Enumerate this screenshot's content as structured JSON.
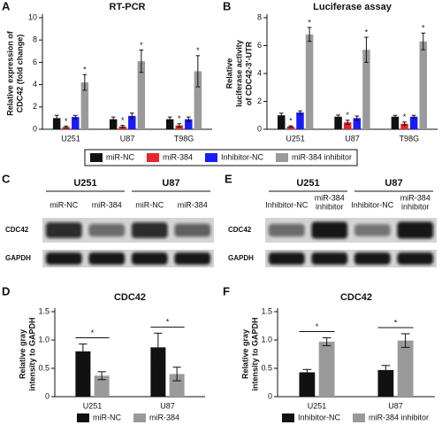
{
  "chart_data": [
    {
      "type": "bar",
      "panel": "A",
      "title": "RT-PCR",
      "ylabel": [
        "Relative expression of",
        "CDC42 (fold change)"
      ],
      "categories": [
        "U251",
        "U87",
        "T98G"
      ],
      "ylim": [
        0,
        10
      ],
      "yticks": [
        0,
        2,
        4,
        6,
        8,
        10
      ],
      "legend": "bottom",
      "series": [
        {
          "name": "miR-NC",
          "color": "#111111",
          "values": [
            1.0,
            0.9,
            0.9
          ],
          "errors": [
            0.25,
            0.2,
            0.2
          ]
        },
        {
          "name": "miR-384",
          "color": "#e8262a",
          "values": [
            0.2,
            0.25,
            0.35
          ],
          "errors": [
            0.08,
            0.1,
            0.15
          ],
          "significance": [
            "*",
            "*",
            "*"
          ]
        },
        {
          "name": "Inhibitor-NC",
          "color": "#1a1aff",
          "values": [
            1.1,
            1.2,
            0.9
          ],
          "errors": [
            0.15,
            0.25,
            0.2
          ]
        },
        {
          "name": "miR-384 inhibitor",
          "color": "#9a9a9a",
          "values": [
            4.2,
            6.1,
            5.2
          ],
          "errors": [
            0.7,
            1.0,
            1.4
          ],
          "significance": [
            "*",
            "*",
            "*"
          ]
        }
      ]
    },
    {
      "type": "bar",
      "panel": "B",
      "title": "Luciferase assay",
      "ylabel": [
        "Relative",
        "luciferase activity",
        "of CDC42-3′-UTR"
      ],
      "categories": [
        "U251",
        "U87",
        "T98G"
      ],
      "ylim": [
        0,
        8
      ],
      "yticks": [
        0,
        2,
        4,
        6,
        8
      ],
      "series": [
        {
          "color": "#111111",
          "values": [
            1.0,
            0.9,
            0.9
          ],
          "errors": [
            0.15,
            0.12,
            0.1
          ]
        },
        {
          "color": "#e8262a",
          "values": [
            0.2,
            0.5,
            0.4
          ],
          "errors": [
            0.05,
            0.15,
            0.12
          ],
          "significance": [
            "*",
            "*",
            "*"
          ]
        },
        {
          "color": "#1a1aff",
          "values": [
            1.2,
            0.8,
            0.9
          ],
          "errors": [
            0.12,
            0.15,
            0.1
          ]
        },
        {
          "color": "#9a9a9a",
          "values": [
            6.8,
            5.7,
            6.3
          ],
          "errors": [
            0.5,
            0.9,
            0.6
          ],
          "significance": [
            "*",
            "*",
            "*"
          ]
        }
      ]
    },
    {
      "type": "bar",
      "panel": "D",
      "title": "CDC42",
      "ylabel": [
        "Relative gray",
        "intensity to GAPDH"
      ],
      "categories": [
        "U251",
        "U87"
      ],
      "ylim": [
        0,
        1.5
      ],
      "yticks": [
        0,
        0.5,
        {
          "value": 1,
          "label": "1.0"
        },
        1.5
      ],
      "legend": "bottom",
      "significance": [
        "*",
        "*"
      ],
      "series": [
        {
          "name": "miR-NC",
          "color": "#111111",
          "values": [
            0.8,
            0.87
          ],
          "errors": [
            0.13,
            0.25
          ]
        },
        {
          "name": "miR-384",
          "color": "#9a9a9a",
          "values": [
            0.37,
            0.4
          ],
          "errors": [
            0.07,
            0.12
          ]
        }
      ]
    },
    {
      "type": "bar",
      "panel": "F",
      "title": "CDC42",
      "ylabel": [
        "Relative gray",
        "intensity to GAPDH"
      ],
      "categories": [
        "U251",
        "U87"
      ],
      "ylim": [
        0,
        1.5
      ],
      "yticks": [
        0,
        0.5,
        {
          "value": 1,
          "label": "1.0"
        },
        1.5
      ],
      "legend": "bottom",
      "significance": [
        "*",
        "*"
      ],
      "series": [
        {
          "name": "Inhibitor-NC",
          "color": "#111111",
          "values": [
            0.43,
            0.47
          ],
          "errors": [
            0.05,
            0.08
          ]
        },
        {
          "name": "miR-384 inhibitor",
          "color": "#9a9a9a",
          "values": [
            0.97,
            0.99
          ],
          "errors": [
            0.07,
            0.12
          ]
        }
      ]
    }
  ],
  "blots": [
    {
      "panel": "C",
      "rows": [
        "CDC42",
        "GAPDH"
      ],
      "groups": [
        {
          "label": "U251",
          "lanes": [
            "miR-NC",
            "miR-384"
          ]
        },
        {
          "label": "U87",
          "lanes": [
            "miR-NC",
            "miR-384"
          ]
        }
      ]
    },
    {
      "panel": "E",
      "rows": [
        "CDC42",
        "GAPDH"
      ],
      "groups": [
        {
          "label": "U251",
          "lanes": [
            "Inhibitor-NC",
            [
              "miR-384",
              "inhibitor"
            ]
          ]
        },
        {
          "label": "U87",
          "lanes": [
            "Inhibitor-NC",
            [
              "miR-384",
              "inhibitor"
            ]
          ]
        }
      ]
    }
  ]
}
